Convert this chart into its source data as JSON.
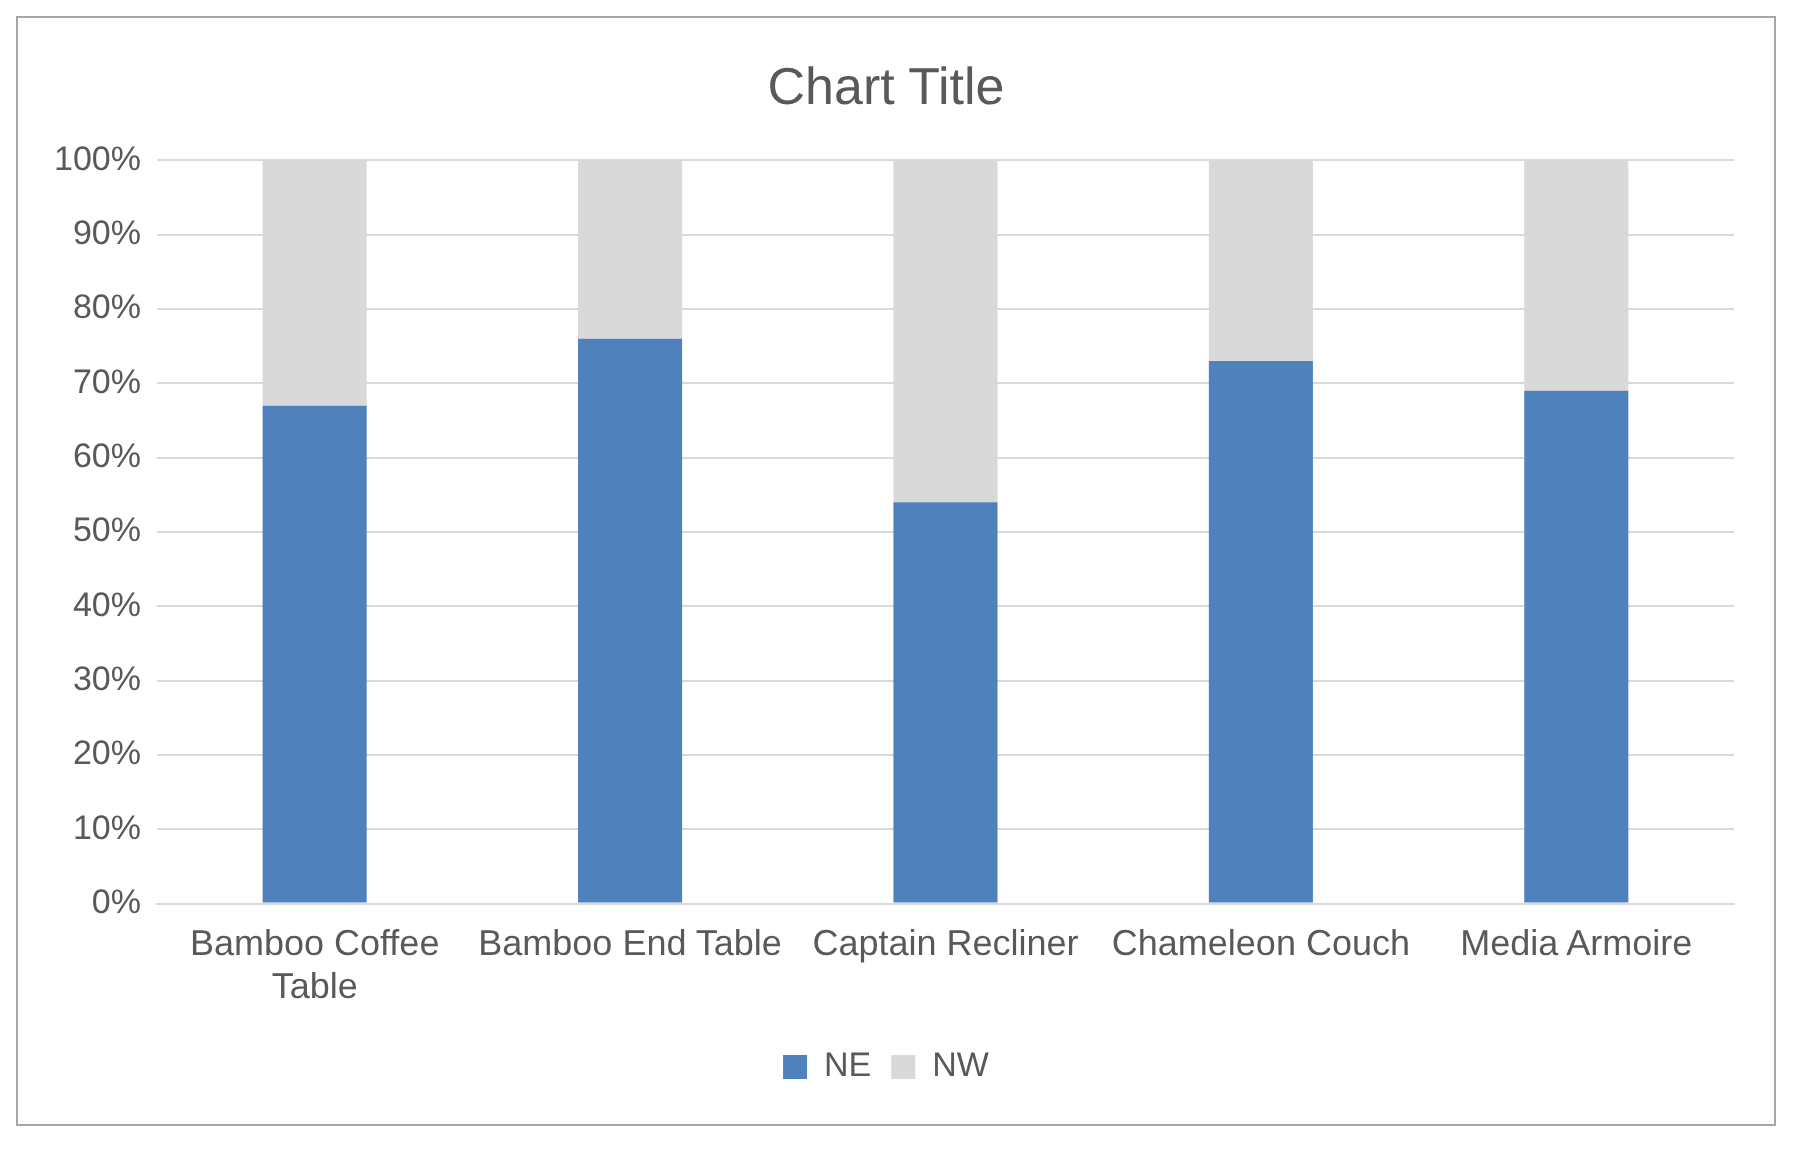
{
  "chart_data": {
    "type": "bar",
    "title": "Chart Title",
    "stacked": true,
    "categories": [
      "Bamboo Coffee Table",
      "Bamboo End Table",
      "Captain Recliner",
      "Chameleon Couch",
      "Media Armoire"
    ],
    "series": [
      {
        "name": "NE",
        "color": "#4f81bd",
        "values": [
          67,
          76,
          54,
          73,
          69
        ]
      },
      {
        "name": "NW",
        "color": "#d9d9d9",
        "values": [
          33,
          24,
          46,
          27,
          31
        ]
      }
    ],
    "ylim": [
      0,
      100
    ],
    "yticks": [
      {
        "value": 0,
        "label": "0%"
      },
      {
        "value": 10,
        "label": "10%"
      },
      {
        "value": 20,
        "label": "20%"
      },
      {
        "value": 30,
        "label": "30%"
      },
      {
        "value": 40,
        "label": "40%"
      },
      {
        "value": 50,
        "label": "50%"
      },
      {
        "value": 60,
        "label": "60%"
      },
      {
        "value": 70,
        "label": "70%"
      },
      {
        "value": 80,
        "label": "80%"
      },
      {
        "value": 90,
        "label": "90%"
      },
      {
        "value": 100,
        "label": "100%"
      }
    ],
    "grid": "y",
    "legend": "bottom"
  }
}
